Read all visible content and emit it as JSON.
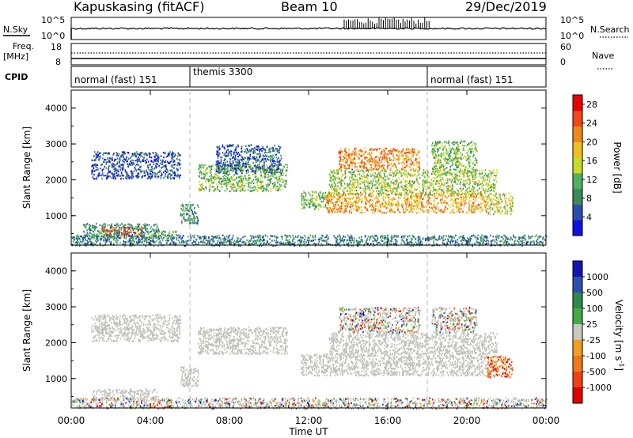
{
  "header": {
    "station": "Kapuskasing (fitACF)",
    "beam": "Beam 10",
    "date": "29/Dec/2019"
  },
  "top_panels": {
    "nsky_label": "N.Sky",
    "nsky_ticks": [
      "10^5",
      "10^0"
    ],
    "nsearch_label": "N.Search",
    "nsearch_ticks": [
      "10^5",
      "10^0"
    ],
    "freq_label": "Freq.",
    "freq_unit": "[MHz]",
    "freq_ticks": [
      "18",
      "8"
    ],
    "nave_label": "Nave",
    "nave_ticks": [
      "60",
      "0"
    ],
    "cpid_label": "CPID",
    "cpid_segments": [
      {
        "label": "normal (fast) 151",
        "start_h": 0,
        "end_h": 6
      },
      {
        "label": "themis 3300",
        "start_h": 6,
        "end_h": 18
      },
      {
        "label": "normal (fast) 151",
        "start_h": 18,
        "end_h": 24
      }
    ]
  },
  "colors": {
    "power_scale": [
      "#1010e0",
      "#2a4db0",
      "#3a8a5a",
      "#50b060",
      "#c8dc28",
      "#f0c020",
      "#f08818",
      "#f04818",
      "#e80000"
    ],
    "velocity_scale": [
      "#1414b4",
      "#2d4fb0",
      "#2e8a4a",
      "#44aa44",
      "#6ed23c",
      "#c8c8c0",
      "#f0a020",
      "#f07818",
      "#f04018",
      "#e00000"
    ],
    "ground_scatter": "#c0c0b8"
  },
  "chart_data": [
    {
      "type": "heatmap",
      "title": "Power",
      "xlabel": "Time UT",
      "ylabel": "Slant Range [km]",
      "x_ticks": [
        "00:00",
        "04:00",
        "08:00",
        "12:00",
        "16:00",
        "20:00",
        "00:00"
      ],
      "xlim": [
        0,
        24
      ],
      "ylim": [
        180,
        4500
      ],
      "y_ticks": [
        "1000",
        "2000",
        "3000",
        "4000"
      ],
      "colorbar_label": "Power [dB]",
      "colorbar_ticks": [
        "4",
        "8",
        "12",
        "16",
        "20",
        "24",
        "28"
      ],
      "colorbar_range": [
        0,
        30
      ],
      "regions": [
        {
          "t0": 1.5,
          "t1": 3.6,
          "r0": 420,
          "r1": 720,
          "level": 24
        },
        {
          "t0": 0.6,
          "t1": 4.4,
          "r0": 400,
          "r1": 800,
          "level": 9
        },
        {
          "t0": 4.1,
          "t1": 5.3,
          "r0": 380,
          "r1": 600,
          "level": 10
        },
        {
          "t0": 5.5,
          "t1": 6.4,
          "r0": 800,
          "r1": 1350,
          "level": 9
        },
        {
          "t0": 1.0,
          "t1": 5.5,
          "r0": 2050,
          "r1": 2800,
          "level": 5
        },
        {
          "t0": 6.4,
          "t1": 10.9,
          "r0": 1700,
          "r1": 2450,
          "level": 12
        },
        {
          "t0": 7.3,
          "t1": 10.6,
          "r0": 2200,
          "r1": 3000,
          "level": 6
        },
        {
          "t0": 11.6,
          "t1": 13.0,
          "r0": 1200,
          "r1": 1700,
          "level": 12
        },
        {
          "t0": 12.8,
          "t1": 21.0,
          "r0": 1100,
          "r1": 1650,
          "level": 20
        },
        {
          "t0": 13.0,
          "t1": 21.5,
          "r0": 1600,
          "r1": 2300,
          "level": 14
        },
        {
          "t0": 13.5,
          "t1": 17.6,
          "r0": 2300,
          "r1": 2900,
          "level": 22
        },
        {
          "t0": 18.2,
          "t1": 20.5,
          "r0": 2200,
          "r1": 3100,
          "level": 12
        },
        {
          "t0": 21.0,
          "t1": 22.3,
          "r0": 1050,
          "r1": 1650,
          "level": 16
        },
        {
          "t0": 0.0,
          "t1": 24.0,
          "r0": 180,
          "r1": 480,
          "level": 8
        }
      ]
    },
    {
      "type": "heatmap",
      "title": "Velocity",
      "xlabel": "Time UT",
      "ylabel": "Slant Range [km]",
      "x_ticks": [
        "00:00",
        "04:00",
        "08:00",
        "12:00",
        "16:00",
        "20:00",
        "00:00"
      ],
      "xlim": [
        0,
        24
      ],
      "ylim": [
        180,
        4500
      ],
      "y_ticks": [
        "1000",
        "2000",
        "3000",
        "4000"
      ],
      "colorbar_label": "Velocity [m s^-1]",
      "colorbar_ticks": [
        "1000",
        "500",
        "100",
        "25",
        "-25",
        "-100",
        "-500",
        "-1000"
      ],
      "regions": [
        {
          "t0": 1.0,
          "t1": 4.4,
          "r0": 420,
          "r1": 720,
          "kind": "ground"
        },
        {
          "t0": 5.5,
          "t1": 6.4,
          "r0": 800,
          "r1": 1350,
          "kind": "ground"
        },
        {
          "t0": 1.0,
          "t1": 5.5,
          "r0": 2050,
          "r1": 2800,
          "kind": "ground"
        },
        {
          "t0": 6.4,
          "t1": 10.9,
          "r0": 1700,
          "r1": 2450,
          "kind": "ground"
        },
        {
          "t0": 11.6,
          "t1": 21.0,
          "r0": 1100,
          "r1": 1700,
          "kind": "ground"
        },
        {
          "t0": 13.0,
          "t1": 21.5,
          "r0": 1700,
          "r1": 2300,
          "kind": "ground"
        },
        {
          "t0": 13.5,
          "t1": 17.6,
          "r0": 2300,
          "r1": 3000,
          "kind": "mixed"
        },
        {
          "t0": 18.2,
          "t1": 20.5,
          "r0": 2300,
          "r1": 3000,
          "kind": "mixed"
        },
        {
          "t0": 21.0,
          "t1": 22.3,
          "r0": 1050,
          "r1": 1650,
          "kind": "negative"
        },
        {
          "t0": 0.0,
          "t1": 24.0,
          "r0": 180,
          "r1": 480,
          "kind": "mixed"
        }
      ]
    }
  ]
}
